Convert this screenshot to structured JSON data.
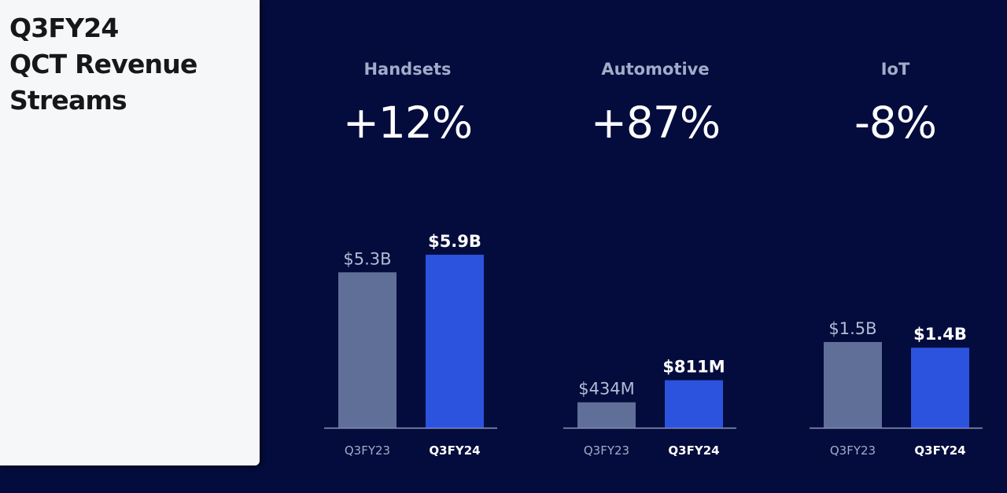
{
  "title": {
    "line1": "Q3FY24",
    "line2": "QCT Revenue",
    "line3": "Streams"
  },
  "colors": {
    "background": "#030c3c",
    "title_panel": "#f6f7f9",
    "prior_bar": "#606f97",
    "current_bar": "#2c53de",
    "axis": "#8f98b8"
  },
  "chart_data": [
    {
      "type": "bar",
      "title": "Handsets",
      "growth": "+12%",
      "categories": [
        "Q3FY23",
        "Q3FY24"
      ],
      "values": [
        5.3,
        5.9
      ],
      "unit": "$B",
      "data_labels": [
        "$5.3B",
        "$5.9B"
      ]
    },
    {
      "type": "bar",
      "title": "Automotive",
      "growth": "+87%",
      "categories": [
        "Q3FY23",
        "Q3FY24"
      ],
      "values": [
        434,
        811
      ],
      "unit": "$M",
      "data_labels": [
        "$434M",
        "$811M"
      ]
    },
    {
      "type": "bar",
      "title": "IoT",
      "growth": "-8%",
      "categories": [
        "Q3FY23",
        "Q3FY24"
      ],
      "values": [
        1.5,
        1.4
      ],
      "unit": "$B",
      "data_labels": [
        "$1.5B",
        "$1.4B"
      ]
    }
  ]
}
